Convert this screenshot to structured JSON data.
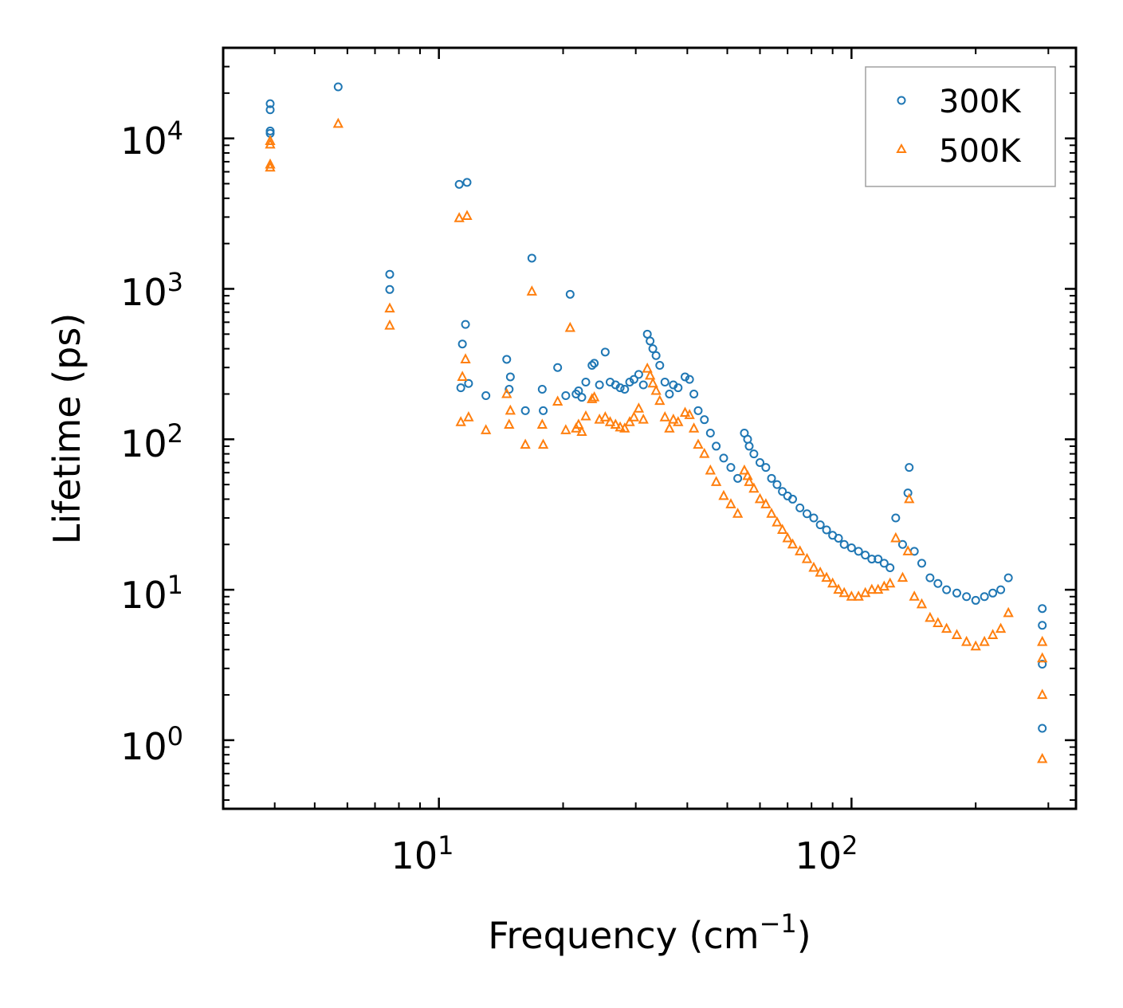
{
  "chart_data": {
    "type": "scatter",
    "title": "",
    "xlabel": "Frequency (cm",
    "xlabel_sup": "−1",
    "xlabel_end": ")",
    "ylabel": "Lifetime (ps)",
    "xscale": "log",
    "yscale": "log",
    "xlim": [
      3.0,
      350
    ],
    "ylim": [
      0.35,
      40000
    ],
    "x_ticks": [
      {
        "value": 10,
        "base": "10",
        "exp": "1"
      },
      {
        "value": 100,
        "base": "10",
        "exp": "2"
      }
    ],
    "y_ticks": [
      {
        "value": 1,
        "base": "10",
        "exp": "0"
      },
      {
        "value": 10,
        "base": "10",
        "exp": "1"
      },
      {
        "value": 100,
        "base": "10",
        "exp": "2"
      },
      {
        "value": 1000,
        "base": "10",
        "exp": "3"
      },
      {
        "value": 10000,
        "base": "10",
        "exp": "4"
      }
    ],
    "legend_position": "top-right",
    "series": [
      {
        "name": "300K",
        "marker": "circle",
        "color": "#1f77b4",
        "x": [
          3.9,
          3.9,
          3.9,
          3.9,
          5.7,
          7.6,
          7.6,
          11.3,
          11.4,
          11.6,
          11.7,
          11.2,
          11.8,
          13.0,
          14.6,
          14.9,
          14.8,
          16.2,
          16.8,
          17.8,
          17.9,
          19.4,
          20.3,
          20.8,
          21.5,
          21.8,
          22.2,
          22.7,
          23.5,
          23.8,
          24.5,
          25.3,
          26.0,
          26.8,
          27.5,
          28.2,
          29.0,
          29.7,
          30.5,
          31.3,
          32.0,
          32.5,
          33.0,
          33.6,
          34.3,
          35.3,
          36.2,
          37.0,
          38.0,
          39.5,
          40.5,
          41.5,
          42.5,
          44.0,
          45.5,
          47.0,
          49.0,
          51.0,
          53.0,
          55.0,
          56.0,
          56.5,
          58.0,
          60.0,
          62.0,
          64.0,
          66.0,
          68.0,
          70.0,
          72.0,
          75.0,
          78.0,
          81.0,
          84.0,
          87.0,
          90.0,
          93.0,
          96.0,
          100.0,
          104.0,
          108.0,
          112.0,
          116.0,
          120.0,
          124.0,
          128.0,
          133.0,
          137.0,
          138.0,
          142.0,
          148.0,
          155.0,
          162.0,
          170.0,
          180.0,
          190.0,
          200.0,
          210.0,
          220.0,
          230.0,
          240.0,
          290.0,
          290.0,
          290.0,
          290.0
        ],
        "y": [
          17000,
          15500,
          11200,
          10800,
          22000,
          1250,
          990,
          220,
          430,
          580,
          5100,
          4950,
          235,
          195,
          340,
          260,
          215,
          155,
          1600,
          215,
          155,
          300,
          195,
          920,
          200,
          210,
          190,
          240,
          310,
          320,
          230,
          380,
          240,
          230,
          220,
          215,
          240,
          250,
          270,
          230,
          500,
          450,
          400,
          360,
          310,
          240,
          200,
          230,
          220,
          260,
          250,
          200,
          155,
          135,
          110,
          90,
          75,
          65,
          55,
          110,
          100,
          90,
          80,
          70,
          65,
          55,
          50,
          45,
          42,
          40,
          35,
          32,
          30,
          27,
          25,
          23,
          22,
          20,
          19,
          18,
          17,
          16,
          16,
          15,
          14,
          30,
          20,
          44,
          65,
          18,
          15,
          12,
          11,
          10,
          9.5,
          9,
          8.5,
          9,
          9.5,
          10,
          12,
          7.5,
          5.8,
          3.2,
          1.2
        ]
      },
      {
        "name": "500K",
        "marker": "triangle",
        "color": "#ff7f0e",
        "x": [
          3.9,
          3.9,
          3.9,
          3.9,
          5.7,
          7.6,
          7.6,
          11.3,
          11.4,
          11.6,
          11.7,
          11.2,
          11.8,
          13.0,
          14.6,
          14.9,
          14.8,
          16.2,
          16.8,
          17.8,
          17.9,
          19.4,
          20.3,
          20.8,
          21.5,
          21.8,
          22.2,
          22.7,
          23.5,
          23.8,
          24.5,
          25.3,
          26.0,
          26.8,
          27.5,
          28.2,
          29.0,
          29.7,
          30.5,
          31.3,
          32.0,
          32.5,
          33.0,
          33.6,
          34.3,
          35.3,
          36.2,
          37.0,
          38.0,
          39.5,
          40.5,
          41.5,
          42.5,
          44.0,
          45.5,
          47.0,
          49.0,
          51.0,
          53.0,
          55.0,
          56.0,
          56.5,
          58.0,
          60.0,
          62.0,
          64.0,
          66.0,
          68.0,
          70.0,
          72.0,
          75.0,
          78.0,
          81.0,
          84.0,
          87.0,
          90.0,
          93.0,
          96.0,
          100.0,
          104.0,
          108.0,
          112.0,
          116.0,
          120.0,
          124.0,
          128.0,
          133.0,
          137.0,
          138.0,
          142.0,
          148.0,
          155.0,
          162.0,
          170.0,
          180.0,
          190.0,
          200.0,
          210.0,
          220.0,
          230.0,
          240.0,
          290.0,
          290.0,
          290.0,
          290.0
        ],
        "y": [
          9600,
          9100,
          6700,
          6400,
          12500,
          740,
          570,
          130,
          260,
          340,
          3050,
          2950,
          140,
          115,
          200,
          155,
          125,
          92,
          960,
          125,
          92,
          178,
          115,
          550,
          118,
          125,
          112,
          142,
          185,
          190,
          135,
          140,
          130,
          125,
          120,
          118,
          130,
          140,
          160,
          135,
          295,
          265,
          235,
          210,
          180,
          140,
          118,
          135,
          130,
          150,
          145,
          118,
          92,
          80,
          62,
          52,
          42,
          37,
          32,
          62,
          57,
          52,
          47,
          40,
          37,
          32,
          28,
          25,
          22,
          20,
          18,
          16,
          14,
          13,
          12,
          11,
          10,
          9.5,
          9,
          9,
          9.5,
          10,
          10,
          10.5,
          11,
          22,
          12,
          18,
          40,
          9,
          8,
          6.5,
          6,
          5.5,
          5,
          4.5,
          4.2,
          4.5,
          5,
          5.5,
          7,
          4.5,
          3.5,
          2.0,
          0.75
        ]
      }
    ]
  }
}
